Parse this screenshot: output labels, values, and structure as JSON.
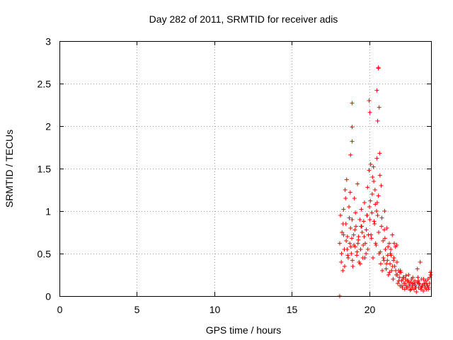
{
  "chart_data": {
    "type": "scatter",
    "title": "Day 282 of 2011, SRMTID for receiver adis",
    "xlabel": "GPS time / hours",
    "ylabel": "SRMTID / TECUs",
    "xlim": [
      0,
      24
    ],
    "ylim": [
      0,
      3
    ],
    "xticks": [
      0,
      5,
      10,
      15,
      20
    ],
    "xtick_labels": [
      "0",
      "5",
      "10",
      "15",
      "20"
    ],
    "yticks": [
      0,
      0.5,
      1,
      1.5,
      2,
      2.5,
      3
    ],
    "ytick_labels": [
      "0",
      "0.5",
      "1",
      "1.5",
      "2",
      "2.5",
      "3"
    ],
    "grid": true,
    "marker": "+",
    "series": [
      {
        "name": "SRMTID",
        "color": "#ff0000",
        "x": [
          18.1,
          18.15,
          18.2,
          18.25,
          18.3,
          18.35,
          18.4,
          18.45,
          18.5,
          18.55,
          18.6,
          18.65,
          18.7,
          18.75,
          18.8,
          18.85,
          18.9,
          18.95,
          19.0,
          19.05,
          19.1,
          19.15,
          19.2,
          19.25,
          19.3,
          19.35,
          19.4,
          19.45,
          19.5,
          19.55,
          19.6,
          19.65,
          19.7,
          19.75,
          19.8,
          19.85,
          19.9,
          19.95,
          20.0,
          20.05,
          20.1,
          20.15,
          20.2,
          20.25,
          20.3,
          20.35,
          20.4,
          20.45,
          20.5,
          20.55,
          20.6,
          20.65,
          20.7,
          20.75,
          20.8,
          20.85,
          20.9,
          20.95,
          21.0,
          21.05,
          21.1,
          21.15,
          21.2,
          21.25,
          21.3,
          21.35,
          21.4,
          21.45,
          21.5,
          21.55,
          21.6,
          21.65,
          21.7,
          21.75,
          21.8,
          21.85,
          21.9,
          21.95,
          22.0,
          22.05,
          22.1,
          22.15,
          22.2,
          22.25,
          22.3,
          22.35,
          22.4,
          22.45,
          22.5,
          22.55,
          22.6,
          22.65,
          22.7,
          22.75,
          22.8,
          22.85,
          22.9,
          22.95,
          23.0,
          23.05,
          23.1,
          23.15,
          23.2,
          23.25,
          23.3,
          23.35,
          23.4,
          23.45,
          23.5,
          23.55,
          23.6,
          23.65,
          23.7,
          23.75,
          23.8,
          23.85,
          23.9,
          23.95,
          18.22,
          18.32,
          18.42,
          18.52,
          18.62,
          18.72,
          18.82,
          18.92,
          19.02,
          19.12,
          19.22,
          19.32,
          19.42,
          19.52,
          19.62,
          19.72,
          19.82,
          19.92,
          20.02,
          20.12,
          20.22,
          20.32,
          20.42,
          20.52,
          20.62,
          20.72,
          20.82,
          20.92,
          21.02,
          21.12,
          21.22,
          21.32,
          21.42,
          21.52,
          21.62,
          21.72,
          21.82,
          21.92,
          22.02,
          22.12,
          22.22,
          22.32,
          22.42,
          22.52,
          22.62,
          22.72,
          22.82,
          22.92,
          23.02,
          23.12,
          23.22,
          23.32,
          23.42,
          23.52,
          23.62,
          23.72,
          23.82,
          23.92,
          18.35,
          18.48,
          18.58,
          18.78,
          18.88,
          19.08,
          19.28,
          19.48,
          19.68,
          19.88,
          20.08,
          20.18,
          20.28,
          20.38,
          20.48,
          20.68,
          20.78,
          20.98,
          21.18,
          21.38,
          21.58,
          21.78,
          21.98,
          22.18,
          22.38,
          22.58,
          22.78,
          22.98,
          23.18,
          23.38,
          23.58,
          23.78,
          23.98,
          18.9,
          18.9,
          18.9,
          18.8,
          20.0,
          20.05,
          20.6,
          20.6,
          20.65,
          20.55,
          20.5,
          18.1
        ],
        "y": [
          0.62,
          0.95,
          0.4,
          0.75,
          0.3,
          1.02,
          0.55,
          1.25,
          0.85,
          1.37,
          0.7,
          0.45,
          1.05,
          0.62,
          0.8,
          0.5,
          0.9,
          0.35,
          0.72,
          1.15,
          0.58,
          0.82,
          0.48,
          1.32,
          0.66,
          0.4,
          0.9,
          0.55,
          1.02,
          0.75,
          0.45,
          0.88,
          1.1,
          0.62,
          0.5,
          0.95,
          1.28,
          0.72,
          1.48,
          0.9,
          1.55,
          0.68,
          1.2,
          0.45,
          1.35,
          0.85,
          1.08,
          0.6,
          1.62,
          0.95,
          1.18,
          0.5,
          1.42,
          0.38,
          0.82,
          0.3,
          0.65,
          0.42,
          1.0,
          0.55,
          0.32,
          0.8,
          0.48,
          0.25,
          0.62,
          0.38,
          0.55,
          0.3,
          0.72,
          0.2,
          0.45,
          0.35,
          0.58,
          0.25,
          0.4,
          0.15,
          0.3,
          0.22,
          0.12,
          0.28,
          0.18,
          0.1,
          0.22,
          0.15,
          0.08,
          0.2,
          0.12,
          0.18,
          0.1,
          0.25,
          0.14,
          0.07,
          0.16,
          0.2,
          0.1,
          0.15,
          0.08,
          0.18,
          0.12,
          0.05,
          0.16,
          0.22,
          0.1,
          0.14,
          0.4,
          0.08,
          0.2,
          0.12,
          0.06,
          0.15,
          0.1,
          0.18,
          0.08,
          0.12,
          0.2,
          0.1,
          0.15,
          0.28,
          0.5,
          0.85,
          0.35,
          0.65,
          0.48,
          0.92,
          0.58,
          0.42,
          0.6,
          0.98,
          0.52,
          0.7,
          0.38,
          0.82,
          0.6,
          0.45,
          0.78,
          0.55,
          1.05,
          0.72,
          1.4,
          0.88,
          0.62,
          1.1,
          0.75,
          0.52,
          0.92,
          0.45,
          0.68,
          0.38,
          0.58,
          0.28,
          0.48,
          0.35,
          0.62,
          0.3,
          0.25,
          0.18,
          0.3,
          0.12,
          0.22,
          0.15,
          0.1,
          0.18,
          0.12,
          0.08,
          0.22,
          0.14,
          0.1,
          0.32,
          0.15,
          0.1,
          0.12,
          0.2,
          0.1,
          0.15,
          0.08,
          0.22,
          0.72,
          1.15,
          0.55,
          1.22,
          0.68,
          0.78,
          0.62,
          0.82,
          0.7,
          0.95,
          1.12,
          0.98,
          1.52,
          1.25,
          1.0,
          1.68,
          1.3,
          0.78,
          0.42,
          0.5,
          0.42,
          0.6,
          0.28,
          0.2,
          0.24,
          0.16,
          0.12,
          0.1,
          0.18,
          0.1,
          0.14,
          0.12,
          0.25,
          2.27,
          1.99,
          1.82,
          1.66,
          2.3,
          2.16,
          2.69,
          2.68,
          2.22,
          2.06,
          2.42,
          0.0
        ]
      }
    ]
  }
}
